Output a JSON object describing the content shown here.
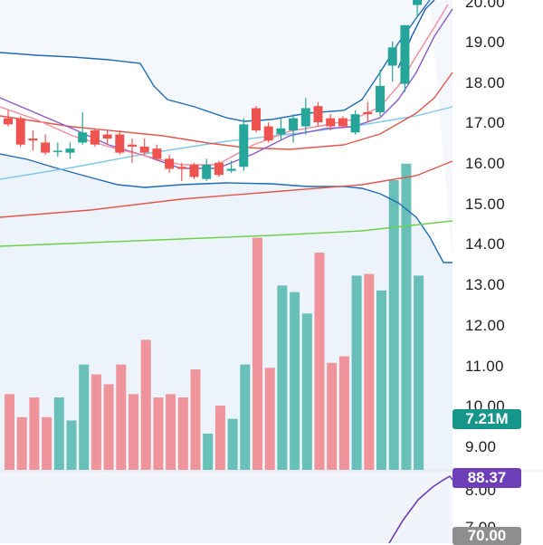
{
  "price_axis": {
    "labels": [
      "20.00",
      "19.00",
      "18.00",
      "17.00",
      "16.00",
      "15.00",
      "14.00",
      "13.00",
      "12.00",
      "11.00",
      "10.00",
      "9.00"
    ]
  },
  "rsi_axis": {
    "labels": [
      "8.00",
      "7.00"
    ]
  },
  "badges": {
    "volume": "7.21M",
    "rsi": "88.37",
    "rsi_level": "70.00"
  },
  "colors": {
    "up": "#26a69a",
    "down": "#ef5350",
    "bollinger_line": "#1f6bb5",
    "bollinger_fill": "#eaf2fa",
    "ma_slow": "#e0574d",
    "ma_fast": "#7fc8e8",
    "ma_200": "#6ad148",
    "ma_pink": "#f28b9a",
    "ma_purple": "#8b5cc7",
    "ma_blue": "#1e5fb5",
    "rsi_line": "#6c3fb8",
    "volume_badge": "#16958a",
    "rsi_badge": "#6c3fb8"
  },
  "chart_data": {
    "type": "candlestick",
    "price_range": [
      8.8,
      20.2
    ],
    "candles": [
      {
        "o": 17.1,
        "h": 17.3,
        "l": 16.9,
        "c": 16.95
      },
      {
        "o": 17.1,
        "h": 17.15,
        "l": 16.4,
        "c": 16.45
      },
      {
        "o": 16.6,
        "h": 16.8,
        "l": 16.3,
        "c": 16.55
      },
      {
        "o": 16.5,
        "h": 16.7,
        "l": 16.2,
        "c": 16.25
      },
      {
        "o": 16.3,
        "h": 16.5,
        "l": 16.15,
        "c": 16.3
      },
      {
        "o": 16.25,
        "h": 16.5,
        "l": 16.1,
        "c": 16.35
      },
      {
        "o": 16.5,
        "h": 17.25,
        "l": 16.45,
        "c": 16.75
      },
      {
        "o": 16.8,
        "h": 16.85,
        "l": 16.4,
        "c": 16.45
      },
      {
        "o": 16.7,
        "h": 16.8,
        "l": 16.45,
        "c": 16.6
      },
      {
        "o": 16.7,
        "h": 16.8,
        "l": 16.2,
        "c": 16.25
      },
      {
        "o": 16.45,
        "h": 16.6,
        "l": 16.0,
        "c": 16.4
      },
      {
        "o": 16.4,
        "h": 16.6,
        "l": 16.2,
        "c": 16.25
      },
      {
        "o": 16.35,
        "h": 16.45,
        "l": 16.05,
        "c": 16.1
      },
      {
        "o": 16.1,
        "h": 16.2,
        "l": 15.75,
        "c": 15.85
      },
      {
        "o": 15.9,
        "h": 16.0,
        "l": 15.55,
        "c": 15.85
      },
      {
        "o": 15.95,
        "h": 16.0,
        "l": 15.6,
        "c": 15.65
      },
      {
        "o": 15.6,
        "h": 16.1,
        "l": 15.55,
        "c": 15.95
      },
      {
        "o": 16.0,
        "h": 16.05,
        "l": 15.65,
        "c": 15.7
      },
      {
        "o": 15.8,
        "h": 16.05,
        "l": 15.75,
        "c": 15.85
      },
      {
        "o": 15.9,
        "h": 17.1,
        "l": 15.8,
        "c": 16.95
      },
      {
        "o": 17.35,
        "h": 17.4,
        "l": 16.75,
        "c": 16.8
      },
      {
        "o": 16.9,
        "h": 17.0,
        "l": 16.5,
        "c": 16.55
      },
      {
        "o": 16.7,
        "h": 17.1,
        "l": 16.55,
        "c": 16.85
      },
      {
        "o": 16.8,
        "h": 17.2,
        "l": 16.5,
        "c": 17.1
      },
      {
        "o": 16.9,
        "h": 17.6,
        "l": 16.7,
        "c": 17.35
      },
      {
        "o": 17.4,
        "h": 17.5,
        "l": 16.9,
        "c": 17.0
      },
      {
        "o": 17.1,
        "h": 17.2,
        "l": 16.8,
        "c": 16.9
      },
      {
        "o": 17.1,
        "h": 17.15,
        "l": 16.85,
        "c": 16.9
      },
      {
        "o": 16.75,
        "h": 17.3,
        "l": 16.7,
        "c": 17.2
      },
      {
        "o": 17.25,
        "h": 17.5,
        "l": 17.0,
        "c": 17.2
      },
      {
        "o": 17.25,
        "h": 18.3,
        "l": 17.15,
        "c": 17.9
      },
      {
        "o": 18.4,
        "h": 19.0,
        "l": 18.0,
        "c": 18.85
      },
      {
        "o": 17.95,
        "h": 19.4,
        "l": 17.75,
        "c": 19.4
      },
      {
        "o": 19.9,
        "h": 20.4,
        "l": 19.6,
        "c": 20.2
      }
    ],
    "volume_range": [
      0,
      7.8
    ],
    "volumes": [
      2.3,
      1.6,
      2.2,
      1.6,
      2.2,
      1.5,
      3.2,
      2.9,
      2.6,
      3.2,
      2.3,
      3.95,
      2.2,
      2.3,
      2.2,
      3.05,
      1.1,
      1.95,
      1.55,
      3.2,
      7.05,
      3.1,
      5.6,
      5.4,
      4.75,
      6.6,
      3.25,
      3.45,
      5.9,
      5.95,
      5.45,
      8.8,
      9.3,
      5.9
    ]
  }
}
